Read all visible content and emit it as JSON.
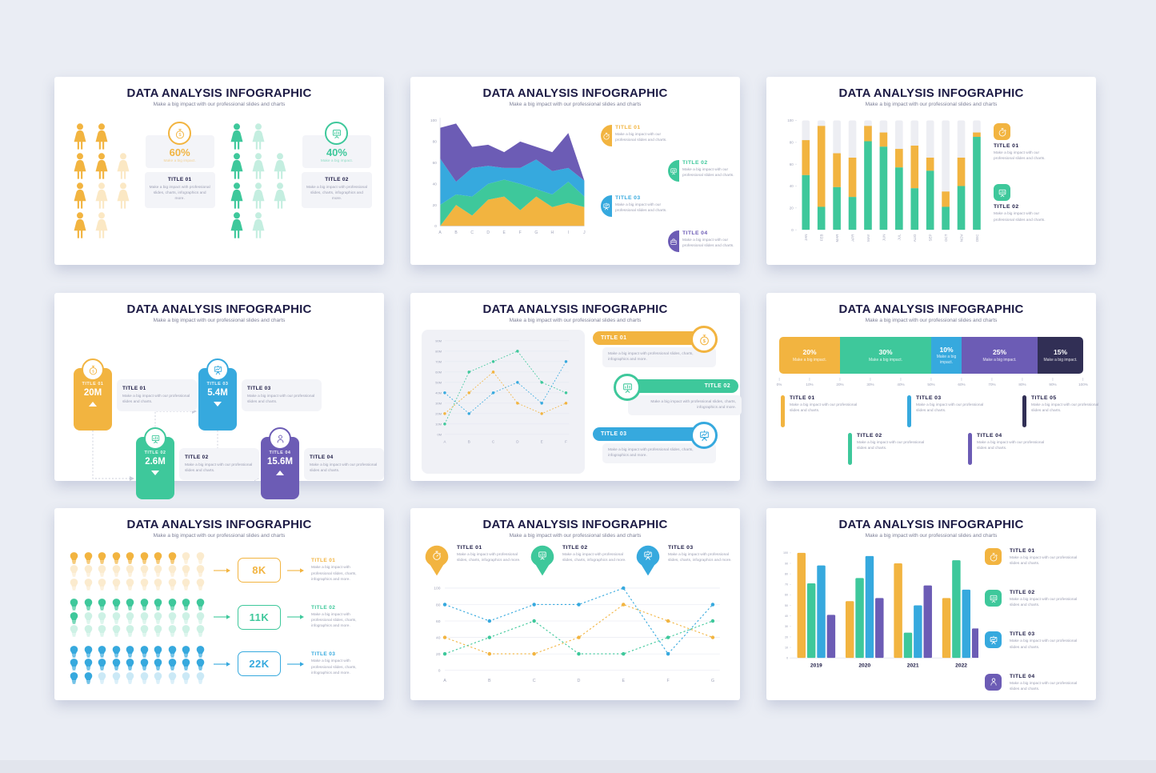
{
  "colors": {
    "bg": "#EAEDF4",
    "strip": "#E2E5ED",
    "ink": "#1D1B45",
    "gray": "#9C9FB3",
    "axis": "#9FA3B8",
    "card": "#F3F4F8",
    "panel": "#F0F1F6",
    "track": "#EDEEF3",
    "grayline": "#D9DCE6",
    "connector": "#C9CCDA",
    "yellow": "#F2B440",
    "green": "#3EC89B",
    "blue": "#36A9DE",
    "purple": "#6C5CB5",
    "navy": "#312F55"
  },
  "common": {
    "title": "DATA ANALYSIS INFOGRAPHIC",
    "subtitle": "Make a big impact with our professional slides and charts",
    "desc_short": "Make a big impact with our professional slides and charts.",
    "desc_long": "Make a big impact with professional slides, charts, infographics and more.",
    "impact": "Make a big impact."
  },
  "slide1": {
    "groups": [
      {
        "color": "yellow",
        "icon": "dollar-icon",
        "percent": "60%",
        "title": "TITLE 01",
        "grid": [
          [
            2,
            2,
            0
          ],
          [
            2,
            2,
            1
          ],
          [
            2,
            1,
            1
          ],
          [
            2,
            1,
            0
          ]
        ]
      },
      {
        "color": "green",
        "icon": "chart-icon",
        "percent": "40%",
        "title": "TITLE 02",
        "grid": [
          [
            2,
            1,
            0
          ],
          [
            2,
            1,
            1
          ],
          [
            2,
            1,
            1
          ],
          [
            2,
            1,
            0
          ]
        ]
      }
    ]
  },
  "slide2": {
    "legend": [
      {
        "title": "TITLE 01",
        "color": "yellow",
        "icon": "stopwatch-icon"
      },
      {
        "title": "TITLE 02",
        "color": "green",
        "icon": "chart-icon"
      },
      {
        "title": "TITLE 03",
        "color": "blue",
        "icon": "easel-icon"
      },
      {
        "title": "TITLE 04",
        "color": "purple",
        "icon": "briefcase-icon"
      }
    ]
  },
  "slide3": {
    "legend": [
      {
        "title": "TITLE 01",
        "color": "yellow",
        "icon": "stopwatch-icon"
      },
      {
        "title": "TITLE 02",
        "color": "green",
        "icon": "chart-icon"
      }
    ]
  },
  "slide4": {
    "items": [
      {
        "pos": "g1",
        "title": "TITLE 01",
        "value": "20M",
        "color": "yellow",
        "icon": "dollar-icon",
        "arrow": "up"
      },
      {
        "pos": "g3",
        "title": "TITLE 03",
        "value": "5.4M",
        "color": "blue",
        "icon": "easel-icon",
        "arrow": "down"
      },
      {
        "pos": "g2",
        "title": "TITLE 02",
        "value": "2.6M",
        "color": "green",
        "icon": "chart-icon",
        "arrow": "down"
      },
      {
        "pos": "g4",
        "title": "TITLE 04",
        "value": "15.6M",
        "color": "purple",
        "icon": "person-icon",
        "arrow": "up"
      }
    ]
  },
  "slide5": {
    "banners": [
      {
        "title": "TITLE 01",
        "color": "yellow",
        "icon": "dollar-icon",
        "align": "left"
      },
      {
        "title": "TITLE 02",
        "color": "green",
        "icon": "chart-icon",
        "align": "right"
      },
      {
        "title": "TITLE 03",
        "color": "blue",
        "icon": "easel-icon",
        "align": "left"
      }
    ]
  },
  "slide6": {
    "legend": [
      {
        "title": "TITLE 01",
        "color": "yellow",
        "row": 0,
        "col": 0
      },
      {
        "title": "TITLE 02",
        "color": "green",
        "row": 1,
        "col": 0
      },
      {
        "title": "TITLE 03",
        "color": "blue",
        "row": 0,
        "col": 1
      },
      {
        "title": "TITLE 04",
        "color": "purple",
        "row": 1,
        "col": 1
      },
      {
        "title": "TITLE 05",
        "color": "navy",
        "row": 0,
        "col": 2
      }
    ]
  },
  "slide7": {
    "rows": [
      {
        "title": "TITLE 01",
        "value": "8K",
        "color": "yellow",
        "solid": 8,
        "cols": 10,
        "rows": 3
      },
      {
        "title": "TITLE 02",
        "value": "11K",
        "color": "green",
        "solid": 11,
        "cols": 10,
        "rows": 3
      },
      {
        "title": "TITLE 03",
        "value": "22K",
        "color": "blue",
        "solid": 22,
        "cols": 10,
        "rows": 3
      }
    ]
  },
  "slide8": {
    "pins": [
      {
        "title": "TITLE 01",
        "color": "yellow",
        "icon": "stopwatch-icon"
      },
      {
        "title": "TITLE 02",
        "color": "green",
        "icon": "chart-icon"
      },
      {
        "title": "TITLE 03",
        "color": "blue",
        "icon": "easel-icon"
      }
    ]
  },
  "slide9": {
    "legend": [
      {
        "title": "TITLE 01",
        "color": "yellow",
        "icon": "stopwatch-icon"
      },
      {
        "title": "TITLE 02",
        "color": "green",
        "icon": "chart-icon"
      },
      {
        "title": "TITLE 03",
        "color": "blue",
        "icon": "easel-icon"
      },
      {
        "title": "TITLE 04",
        "color": "purple",
        "icon": "person-icon"
      }
    ]
  },
  "chart_data": [
    {
      "id": "slide2-stacked-area",
      "type": "area",
      "stacked": true,
      "x": [
        "A",
        "B",
        "C",
        "D",
        "E",
        "F",
        "G",
        "H",
        "I",
        "J"
      ],
      "ylim": [
        0,
        100
      ],
      "yticks": [
        0,
        20,
        40,
        60,
        80,
        100
      ],
      "series": [
        {
          "name": "TITLE 01",
          "color": "yellow",
          "cumulative_top": [
            0,
            20,
            10,
            25,
            28,
            15,
            28,
            18,
            22,
            18
          ]
        },
        {
          "name": "TITLE 02",
          "color": "green",
          "cumulative_top": [
            20,
            30,
            28,
            40,
            44,
            40,
            35,
            30,
            42,
            28
          ]
        },
        {
          "name": "TITLE 03",
          "color": "blue",
          "cumulative_top": [
            64,
            42,
            55,
            57,
            55,
            55,
            63,
            52,
            55,
            43
          ]
        },
        {
          "name": "TITLE 04",
          "color": "purple",
          "cumulative_top": [
            93,
            97,
            75,
            77,
            70,
            80,
            75,
            70,
            88,
            43
          ]
        }
      ]
    },
    {
      "id": "slide3-stacked-bar",
      "type": "bar",
      "stacked": true,
      "categories": [
        "JAN",
        "FEB",
        "MAR",
        "APR",
        "MAY",
        "JUN",
        "JUL",
        "AUG",
        "SEP",
        "OCT",
        "NOV",
        "DEC"
      ],
      "ylim": [
        0,
        100
      ],
      "yticks": [
        0,
        20,
        40,
        60,
        80,
        100
      ],
      "track_to": 100,
      "series": [
        {
          "name": "TITLE 02",
          "color": "green",
          "values": [
            50,
            21,
            39,
            30,
            81,
            76,
            57,
            38,
            54,
            21,
            40,
            85
          ]
        },
        {
          "name": "TITLE 01",
          "color": "yellow",
          "stack_top": [
            82,
            95,
            70,
            66,
            95,
            89,
            74,
            77,
            66,
            35,
            66,
            89
          ]
        }
      ]
    },
    {
      "id": "slide5-line",
      "type": "line",
      "x": [
        "A",
        "B",
        "C",
        "D",
        "E",
        "F"
      ],
      "ylim": [
        0,
        90
      ],
      "yticks": [
        "0M",
        "10M",
        "20M",
        "30M",
        "40M",
        "50M",
        "60M",
        "70M",
        "80M",
        "90M"
      ],
      "series": [
        {
          "name": "TITLE 02",
          "color": "green",
          "values": [
            10,
            60,
            70,
            80,
            50,
            40
          ]
        },
        {
          "name": "TITLE 01",
          "color": "yellow",
          "values": [
            20,
            40,
            60,
            30,
            20,
            30
          ]
        },
        {
          "name": "TITLE 03",
          "color": "blue",
          "values": [
            40,
            20,
            40,
            50,
            30,
            70
          ]
        }
      ]
    },
    {
      "id": "slide6-percent-bar",
      "type": "bar",
      "orientation": "horizontal",
      "stacked": true,
      "axis_ticks": [
        "0%",
        "10%",
        "20%",
        "30%",
        "40%",
        "50%",
        "60%",
        "70%",
        "80%",
        "90%",
        "100%"
      ],
      "segments": [
        {
          "name": "TITLE 01",
          "color": "yellow",
          "value": 20,
          "label": "20%"
        },
        {
          "name": "TITLE 02",
          "color": "green",
          "value": 30,
          "label": "30%"
        },
        {
          "name": "TITLE 03",
          "color": "blue",
          "value": 10,
          "label": "10%"
        },
        {
          "name": "TITLE 04",
          "color": "purple",
          "value": 25,
          "label": "25%"
        },
        {
          "name": "TITLE 05",
          "color": "navy",
          "value": 15,
          "label": "15%"
        }
      ]
    },
    {
      "id": "slide7-pictogram",
      "type": "pictogram",
      "rows": [
        {
          "name": "TITLE 01",
          "value": "8K",
          "solid": 8,
          "total": 30
        },
        {
          "name": "TITLE 02",
          "value": "11K",
          "solid": 11,
          "total": 30
        },
        {
          "name": "TITLE 03",
          "value": "22K",
          "solid": 22,
          "total": 30
        }
      ]
    },
    {
      "id": "slide8-dotted-line",
      "type": "line",
      "x": [
        "A",
        "B",
        "C",
        "D",
        "E",
        "F",
        "G"
      ],
      "ylim": [
        0,
        100
      ],
      "yticks": [
        0,
        20,
        40,
        60,
        80,
        100
      ],
      "series": [
        {
          "name": "TITLE 03",
          "color": "blue",
          "values": [
            80,
            60,
            80,
            80,
            100,
            20,
            80
          ]
        },
        {
          "name": "TITLE 01",
          "color": "yellow",
          "values": [
            40,
            20,
            20,
            40,
            80,
            60,
            40
          ]
        },
        {
          "name": "TITLE 02",
          "color": "green",
          "values": [
            20,
            40,
            60,
            20,
            20,
            40,
            60
          ]
        }
      ]
    },
    {
      "id": "slide9-grouped-bar",
      "type": "bar",
      "grouped": true,
      "categories": [
        "2019",
        "2020",
        "2021",
        "2022"
      ],
      "ylim": [
        0,
        100
      ],
      "yticks": [
        0,
        10,
        20,
        30,
        40,
        50,
        60,
        70,
        80,
        90,
        100
      ],
      "series": [
        {
          "name": "TITLE 01",
          "color": "yellow",
          "values": [
            100,
            54,
            90,
            57
          ]
        },
        {
          "name": "TITLE 02",
          "color": "green",
          "values": [
            71,
            76,
            24,
            93
          ]
        },
        {
          "name": "TITLE 03",
          "color": "blue",
          "values": [
            88,
            97,
            50,
            65
          ]
        },
        {
          "name": "TITLE 04",
          "color": "purple",
          "values": [
            41,
            57,
            69,
            28
          ]
        }
      ]
    },
    {
      "id": "slide1-pictogram",
      "type": "pictogram",
      "groups": [
        {
          "name": "TITLE 01",
          "percent": 60
        },
        {
          "name": "TITLE 02",
          "percent": 40
        }
      ]
    },
    {
      "id": "slide4-stats",
      "type": "table",
      "values": [
        {
          "name": "TITLE 01",
          "value": "20M",
          "trend": "up"
        },
        {
          "name": "TITLE 02",
          "value": "2.6M",
          "trend": "down"
        },
        {
          "name": "TITLE 03",
          "value": "5.4M",
          "trend": "down"
        },
        {
          "name": "TITLE 04",
          "value": "15.6M",
          "trend": "up"
        }
      ]
    }
  ]
}
